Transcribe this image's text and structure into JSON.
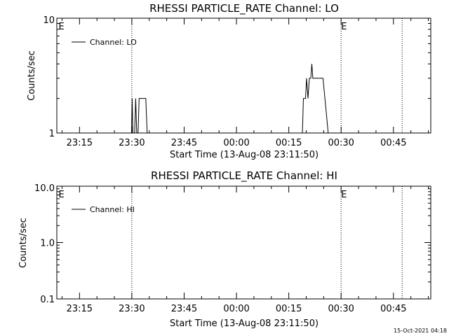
{
  "chart_data": [
    {
      "type": "line",
      "title": "RHESSI PARTICLE_RATE Channel: LO",
      "xlabel": "Start Time (13-Aug-08 23:11:50)",
      "ylabel": "Counts/sec",
      "yscale": "log",
      "ylim": [
        1,
        10
      ],
      "y_tick_labels": [
        "1",
        "10"
      ],
      "x_tick_labels": [
        "23:15",
        "23:30",
        "23:45",
        "00:00",
        "00:15",
        "00:30",
        "00:45"
      ],
      "xlim_minutes_after_2300": [
        8.5,
        115.7
      ],
      "x_tick_minutes_after_2300": [
        15,
        30,
        45,
        60,
        75,
        90,
        105
      ],
      "grid": false,
      "legend": {
        "placement": "top-left",
        "entries": [
          "Channel: LO"
        ]
      },
      "event_markers": [
        {
          "label": "E",
          "minute": 9.0,
          "line": false
        },
        {
          "label": "",
          "minute": 30.0,
          "line": true
        },
        {
          "label": "E",
          "minute": 90.0,
          "line": true
        },
        {
          "label": "",
          "minute": 107.5,
          "line": true
        }
      ],
      "series": [
        {
          "name": "Channel: LO",
          "points": [
            [
              29.9,
              1
            ],
            [
              30.1,
              2
            ],
            [
              30.3,
              1
            ],
            [
              30.8,
              1
            ],
            [
              31.1,
              2
            ],
            [
              31.4,
              1
            ],
            [
              31.8,
              1
            ],
            [
              32.1,
              2
            ],
            [
              34.0,
              2
            ],
            [
              34.4,
              1
            ],
            [
              78.9,
              1
            ],
            [
              79.2,
              2
            ],
            [
              79.8,
              2
            ],
            [
              80.1,
              3
            ],
            [
              80.5,
              2
            ],
            [
              80.9,
              3
            ],
            [
              81.3,
              3
            ],
            [
              81.6,
              4
            ],
            [
              81.9,
              3
            ],
            [
              84.8,
              3
            ],
            [
              86.3,
              1
            ]
          ]
        }
      ]
    },
    {
      "type": "line",
      "title": "RHESSI PARTICLE_RATE Channel: HI",
      "xlabel": "Start Time (13-Aug-08 23:11:50)",
      "ylabel": "Counts/sec",
      "yscale": "log",
      "ylim": [
        0.1,
        10
      ],
      "y_tick_labels": [
        "0.1",
        "1.0",
        "10.0"
      ],
      "x_tick_labels": [
        "23:15",
        "23:30",
        "23:45",
        "00:00",
        "00:15",
        "00:30",
        "00:45"
      ],
      "xlim_minutes_after_2300": [
        8.5,
        115.7
      ],
      "x_tick_minutes_after_2300": [
        15,
        30,
        45,
        60,
        75,
        90,
        105
      ],
      "grid": false,
      "legend": {
        "placement": "top-left",
        "entries": [
          "Channel: HI"
        ]
      },
      "event_markers": [
        {
          "label": "E",
          "minute": 9.0,
          "line": false
        },
        {
          "label": "",
          "minute": 30.0,
          "line": true
        },
        {
          "label": "E",
          "minute": 90.0,
          "line": true
        },
        {
          "label": "",
          "minute": 107.5,
          "line": true
        }
      ],
      "series": [
        {
          "name": "Channel: HI",
          "points": []
        }
      ]
    }
  ],
  "footer": {
    "timestamp": "15-Oct-2021 04:18"
  }
}
